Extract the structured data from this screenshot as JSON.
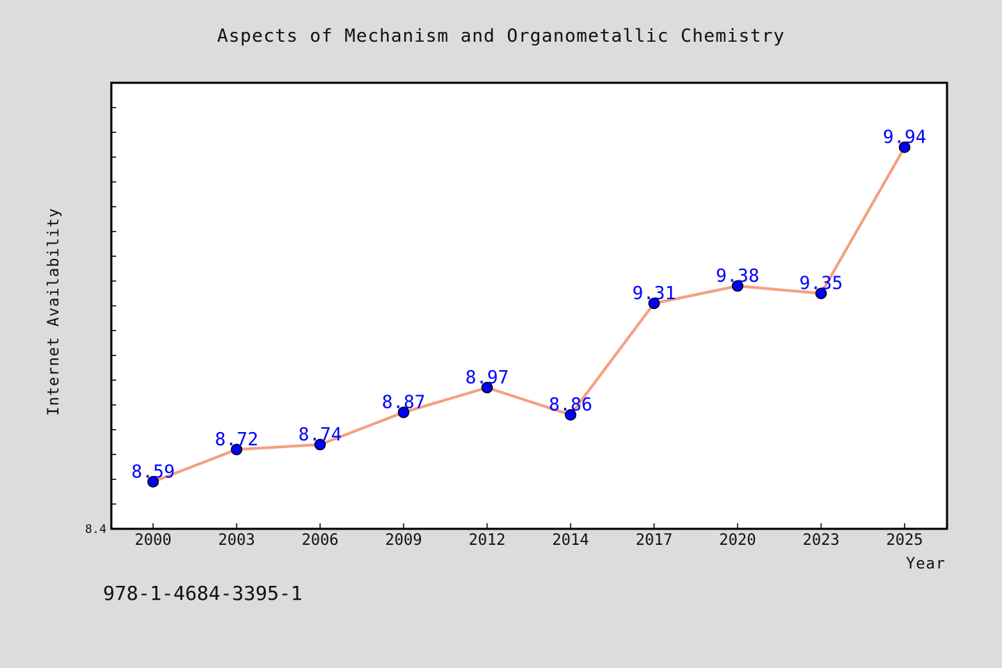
{
  "chart_data": {
    "type": "line",
    "title": "Aspects of Mechanism and Organometallic Chemistry",
    "xlabel": "Year",
    "ylabel": "Internet Availability",
    "categories": [
      "2000",
      "2003",
      "2006",
      "2009",
      "2012",
      "2014",
      "2017",
      "2020",
      "2023",
      "2025"
    ],
    "series": [
      {
        "values": [
          8.59,
          8.72,
          8.74,
          8.87,
          8.97,
          8.86,
          9.31,
          9.38,
          9.35,
          9.94
        ]
      }
    ],
    "data_labels": [
      "8.59",
      "8.72",
      "8.74",
      "8.87",
      "8.97",
      "8.86",
      "9.31",
      "9.38",
      "9.35",
      "9.94"
    ],
    "ylim": [
      8.4,
      10.2
    ],
    "ytick_label": "8.4",
    "grid": false,
    "legend": "none",
    "colors": {
      "line": "#f4a07f",
      "marker": "#0000ff",
      "label": "#0000ff",
      "background": "#dcdcdc",
      "plot_background": "#ffffff"
    }
  },
  "footer": {
    "isbn": "978-1-4684-3395-1"
  }
}
